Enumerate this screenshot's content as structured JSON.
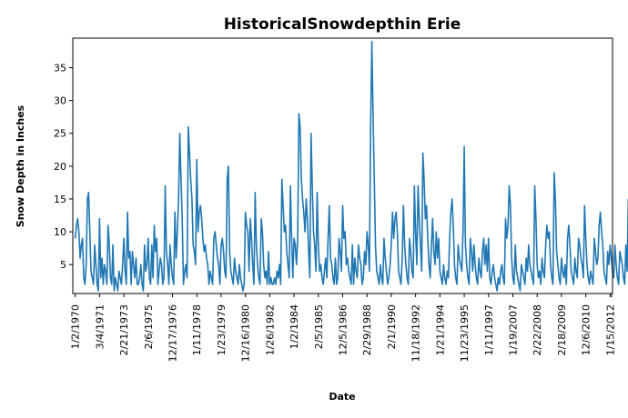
{
  "chart_data": {
    "type": "line",
    "title": "HistoricalSnowdepthin Erie",
    "xlabel": "Date",
    "ylabel": "Snow Depth in Inches",
    "ylim": [
      0.6,
      39.5
    ],
    "y_ticks": [
      5,
      10,
      15,
      20,
      25,
      30,
      35
    ],
    "x_tick_labels": [
      "1/2/1970",
      "3/4/1971",
      "2/21/1973",
      "2/6/1975",
      "12/17/1976",
      "1/11/1978",
      "1/23/1979",
      "12/16/1980",
      "1/26/1982",
      "1/2/1984",
      "2/5/1985",
      "12/5/1986",
      "2/29/1988",
      "2/1/1990",
      "11/18/1992",
      "1/21/1994",
      "11/23/1995",
      "1/11/1997",
      "1/19/2007",
      "2/22/2008",
      "2/18/2009",
      "12/6/2010",
      "1/15/2012"
    ],
    "grid": false,
    "legend": "none",
    "series": [
      {
        "color": "#1f77b4",
        "x": [
          0,
          0.05,
          0.1,
          0.15,
          0.2,
          0.25,
          0.3,
          0.35,
          0.4,
          0.45,
          0.5,
          0.55,
          0.6,
          0.65,
          0.7,
          0.75,
          0.8,
          0.85,
          0.9,
          0.95,
          1,
          1.05,
          1.1,
          1.15,
          1.2,
          1.25,
          1.3,
          1.35,
          1.4,
          1.45,
          1.5,
          1.55,
          1.6,
          1.65,
          1.7,
          1.75,
          1.8,
          1.85,
          1.9,
          1.95,
          2,
          2.05,
          2.1,
          2.15,
          2.2,
          2.25,
          2.3,
          2.35,
          2.4,
          2.45,
          2.5,
          2.55,
          2.6,
          2.65,
          2.7,
          2.75,
          2.8,
          2.85,
          2.9,
          2.95,
          3,
          3.05,
          3.1,
          3.15,
          3.2,
          3.25,
          3.3,
          3.35,
          3.4,
          3.45,
          3.5,
          3.55,
          3.6,
          3.65,
          3.7,
          3.75,
          3.8,
          3.85,
          3.9,
          3.95,
          4,
          4.05,
          4.1,
          4.15,
          4.2,
          4.25,
          4.3,
          4.35,
          4.4,
          4.45,
          4.5,
          4.55,
          4.6,
          4.65,
          4.7,
          4.75,
          4.8,
          4.85,
          4.9,
          4.95,
          5,
          5.05,
          5.1,
          5.15,
          5.2,
          5.25,
          5.3,
          5.35,
          5.4,
          5.45,
          5.5,
          5.55,
          5.6,
          5.65,
          5.7,
          5.75,
          5.8,
          5.85,
          5.9,
          5.95,
          6,
          6.05,
          6.1,
          6.15,
          6.2,
          6.25,
          6.3,
          6.35,
          6.4,
          6.45,
          6.5,
          6.55,
          6.6,
          6.65,
          6.7,
          6.75,
          6.8,
          6.85,
          6.9,
          6.95,
          7,
          7.05,
          7.1,
          7.15,
          7.2,
          7.25,
          7.3,
          7.35,
          7.4,
          7.45,
          7.5,
          7.55,
          7.6,
          7.65,
          7.7,
          7.75,
          7.8,
          7.85,
          7.9,
          7.95,
          8,
          8.05,
          8.1,
          8.15,
          8.2,
          8.25,
          8.3,
          8.35,
          8.4,
          8.45,
          8.5,
          8.55,
          8.6,
          8.65,
          8.7,
          8.75,
          8.8,
          8.85,
          8.9,
          8.95,
          9,
          9.05,
          9.1,
          9.15,
          9.2,
          9.25,
          9.3,
          9.35,
          9.4,
          9.45,
          9.5,
          9.55,
          9.6,
          9.65,
          9.7,
          9.75,
          9.8,
          9.85,
          9.9,
          9.95,
          10,
          10.05,
          10.1,
          10.15,
          10.2,
          10.25,
          10.3,
          10.35,
          10.4,
          10.45,
          10.5,
          10.55,
          10.6,
          10.65,
          10.7,
          10.75,
          10.8,
          10.85,
          10.9,
          10.95,
          11,
          11.05,
          11.1,
          11.15,
          11.2,
          11.25,
          11.3,
          11.35,
          11.4,
          11.45,
          11.5,
          11.55,
          11.6,
          11.65,
          11.7,
          11.75,
          11.8,
          11.85,
          11.9,
          11.95,
          12,
          12.05,
          12.1,
          12.15,
          12.2,
          12.25,
          12.3,
          12.35,
          12.4,
          12.45,
          12.5,
          12.55,
          12.6,
          12.65,
          12.7,
          12.75,
          12.8,
          12.85,
          12.9,
          12.95,
          13,
          13.05,
          13.1,
          13.15,
          13.2,
          13.25,
          13.3,
          13.35,
          13.4,
          13.45,
          13.5,
          13.55,
          13.6,
          13.65,
          13.7,
          13.75,
          13.8,
          13.85,
          13.9,
          13.95,
          14,
          14.05,
          14.1,
          14.15,
          14.2,
          14.25,
          14.3,
          14.35,
          14.4,
          14.45,
          14.5,
          14.55,
          14.6,
          14.65,
          14.7,
          14.75,
          14.8,
          14.85,
          14.9,
          14.95,
          15,
          15.05,
          15.1,
          15.15,
          15.2,
          15.25,
          15.3,
          15.35,
          15.4,
          15.45,
          15.5,
          15.55,
          15.6,
          15.65,
          15.7,
          15.75,
          15.8,
          15.85,
          15.9,
          15.95,
          16,
          16.05,
          16.1,
          16.15,
          16.2,
          16.25,
          16.3,
          16.35,
          16.4,
          16.45,
          16.5,
          16.55,
          16.6,
          16.65,
          16.7,
          16.75,
          16.8,
          16.85,
          16.9,
          16.95,
          17,
          17.05,
          17.1,
          17.15,
          17.2,
          17.25,
          17.3,
          17.35,
          17.4,
          17.45,
          17.5,
          17.55,
          17.6,
          17.65,
          17.7,
          17.75,
          17.8,
          17.85,
          17.9,
          17.95,
          18,
          18.05,
          18.1,
          18.15,
          18.2,
          18.25,
          18.3,
          18.35,
          18.4,
          18.45,
          18.5,
          18.55,
          18.6,
          18.65,
          18.7,
          18.75,
          18.8,
          18.85,
          18.9,
          18.95,
          19,
          19.05,
          19.1,
          19.15,
          19.2,
          19.25,
          19.3,
          19.35,
          19.4,
          19.45,
          19.5,
          19.55,
          19.6,
          19.65,
          19.7,
          19.75,
          19.8,
          19.85,
          19.9,
          19.95,
          20,
          20.05,
          20.1,
          20.15,
          20.2,
          20.25,
          20.3,
          20.35,
          20.4,
          20.45,
          20.5,
          20.55,
          20.6,
          20.65,
          20.7,
          20.75,
          20.8,
          20.85,
          20.9,
          20.95,
          21,
          21.05,
          21.1,
          21.15,
          21.2,
          21.25,
          21.3,
          21.35,
          21.4,
          21.45,
          21.5,
          21.55,
          21.6,
          21.65,
          21.7,
          21.75,
          21.8,
          21.85,
          21.9,
          21.95,
          22,
          22.05,
          22.1,
          22.15,
          22.2,
          22.25,
          22.3,
          22.35,
          22.4,
          22.45,
          22.5,
          22.55,
          22.6,
          22.65,
          22.7,
          22.75,
          22.8,
          22.85,
          22.9,
          22.95,
          23
        ],
        "y": [
          9,
          11,
          12,
          10,
          6,
          8,
          9,
          3,
          2,
          5,
          15,
          16,
          10,
          4,
          3,
          2,
          8,
          5,
          2,
          1,
          12,
          3,
          6,
          2,
          5,
          4,
          2,
          11,
          8,
          3,
          2,
          8,
          1,
          3,
          2,
          1,
          4,
          3,
          2,
          5,
          9,
          4,
          2,
          13,
          6,
          7,
          2,
          7,
          5,
          3,
          6,
          2,
          2,
          3,
          5,
          2,
          1,
          8,
          4,
          5,
          9,
          3,
          2,
          8,
          3,
          11,
          7,
          9,
          2,
          4,
          6,
          5,
          2,
          3,
          17,
          7,
          5,
          2,
          8,
          5,
          3,
          2,
          13,
          6,
          10,
          15,
          25,
          18,
          12,
          2,
          4,
          5,
          3,
          26,
          22,
          18,
          15,
          8,
          7,
          5,
          21,
          10,
          13,
          14,
          12,
          9,
          7,
          8,
          6,
          5,
          2,
          4,
          3,
          2,
          9,
          10,
          8,
          6,
          5,
          2,
          8,
          9,
          7,
          4,
          3,
          18,
          20,
          7,
          4,
          3,
          2,
          6,
          4,
          3,
          2,
          5,
          3,
          2,
          1,
          2,
          13,
          11,
          10,
          4,
          12,
          9,
          5,
          2,
          16,
          8,
          5,
          3,
          2,
          12,
          10,
          5,
          3,
          4,
          2,
          7,
          2,
          3,
          2,
          2,
          3,
          2,
          4,
          3,
          5,
          2,
          18,
          14,
          10,
          11,
          7,
          5,
          3,
          17,
          9,
          3,
          9,
          8,
          5,
          9,
          28,
          26,
          18,
          15,
          13,
          10,
          15,
          12,
          7,
          3,
          25,
          17,
          10,
          8,
          4,
          16,
          8,
          4,
          5,
          3,
          2,
          4,
          6,
          3,
          9,
          14,
          6,
          5,
          3,
          2,
          6,
          2,
          3,
          9,
          7,
          4,
          14,
          9,
          10,
          5,
          6,
          4,
          3,
          2,
          8,
          2,
          6,
          4,
          3,
          8,
          6,
          5,
          2,
          3,
          7,
          5,
          10,
          8,
          4,
          26,
          39,
          28,
          18,
          8,
          4,
          3,
          2,
          5,
          3,
          2,
          9,
          6,
          4,
          2,
          3,
          5,
          8,
          13,
          9,
          12,
          13,
          10,
          4,
          3,
          2,
          6,
          14,
          8,
          5,
          3,
          2,
          9,
          7,
          4,
          3,
          17,
          10,
          5,
          17,
          12,
          8,
          4,
          22,
          18,
          12,
          14,
          9,
          5,
          3,
          8,
          12,
          7,
          5,
          10,
          6,
          9,
          4,
          3,
          2,
          5,
          3,
          2,
          4,
          3,
          9,
          13,
          15,
          11,
          5,
          3,
          2,
          8,
          6,
          5,
          4,
          10,
          23,
          8,
          5,
          3,
          2,
          9,
          7,
          4,
          8,
          5,
          3,
          2,
          6,
          4,
          3,
          7,
          9,
          5,
          8,
          4,
          9,
          3,
          2,
          4,
          5,
          3,
          2,
          1,
          3,
          2,
          4,
          5,
          3,
          2,
          12,
          9,
          11,
          17,
          14,
          6,
          3,
          2,
          8,
          4,
          3,
          2,
          1,
          5,
          4,
          3,
          2,
          6,
          4,
          8,
          5,
          4,
          3,
          2,
          17,
          12,
          5,
          3,
          4,
          2,
          6,
          4,
          3,
          8,
          11,
          9,
          10,
          5,
          3,
          2,
          19,
          15,
          7,
          5,
          3,
          2,
          6,
          4,
          3,
          5,
          2,
          9,
          11,
          8,
          4,
          3,
          2,
          6,
          4,
          3,
          9,
          8,
          6,
          5,
          3,
          14,
          9,
          5,
          3,
          2,
          4,
          3,
          2,
          9,
          7,
          5,
          6,
          11,
          13,
          10,
          8,
          4,
          3,
          2,
          7,
          5,
          8,
          6,
          4,
          3,
          8,
          5,
          3,
          2,
          7,
          6,
          5,
          3,
          2,
          8,
          4,
          15,
          9,
          3,
          2,
          4,
          3
        ]
      }
    ]
  }
}
